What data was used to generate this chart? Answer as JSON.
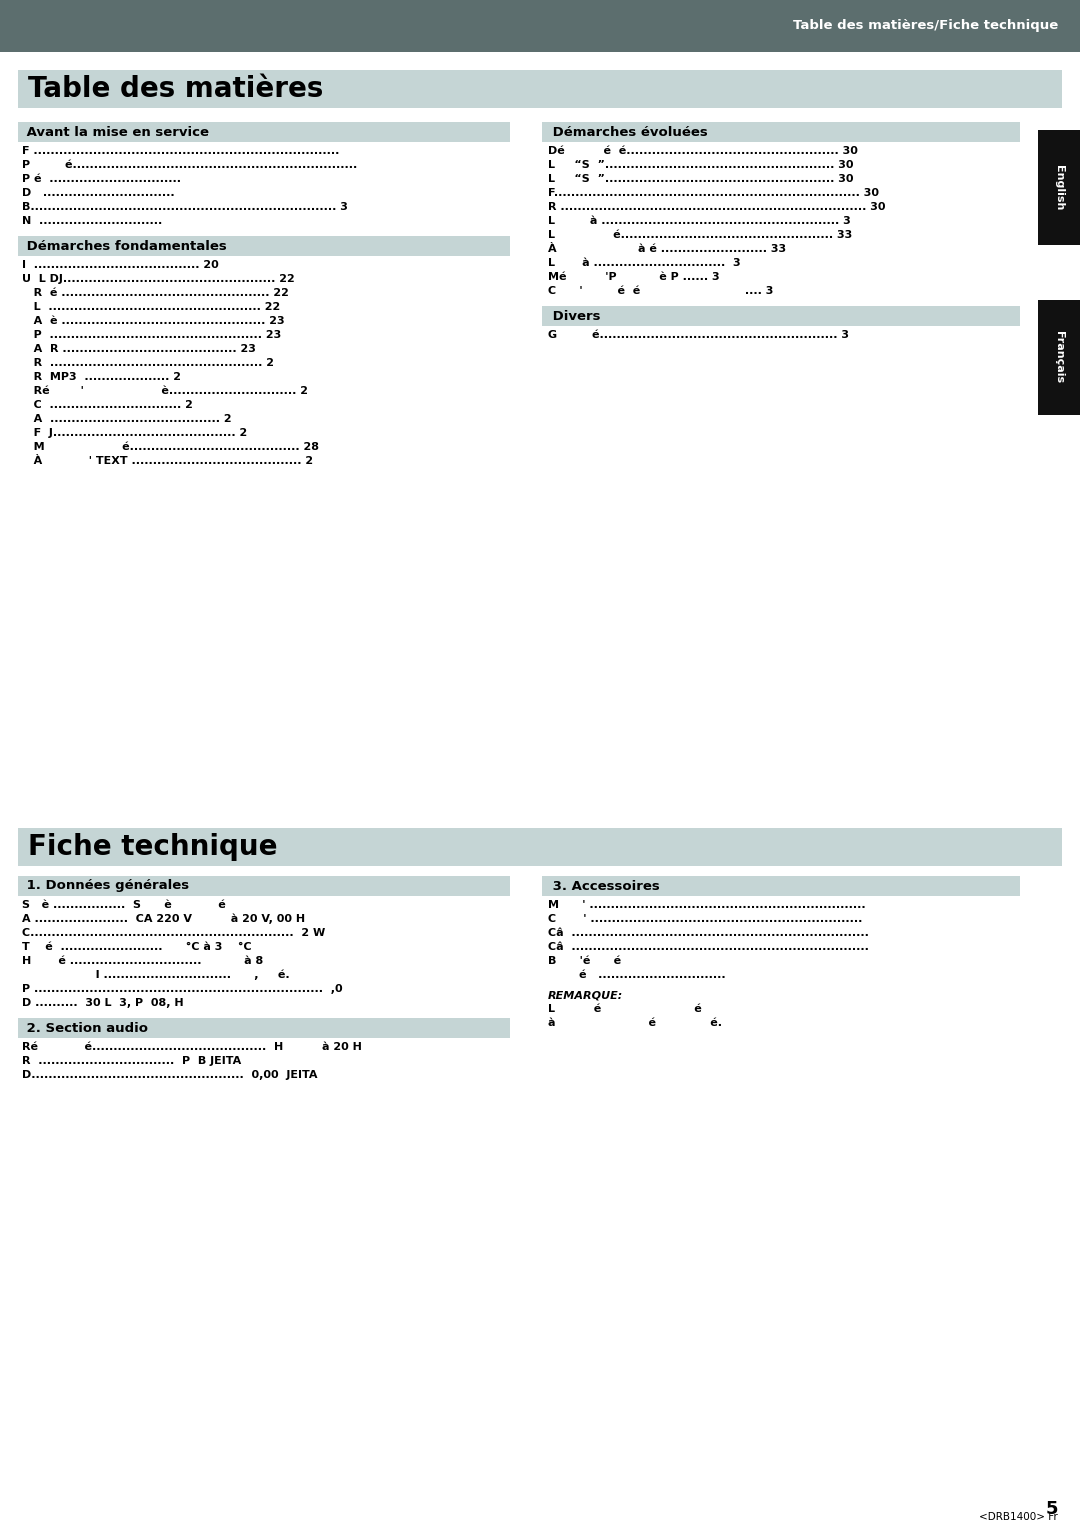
{
  "page_bg": "#ffffff",
  "header_bg": "#5c6e6e",
  "header_text": "Table des matières/Fiche technique",
  "header_text_color": "#ffffff",
  "section_bar_bg": "#c5d5d5",
  "tab_right_bg": "#111111",
  "tab_english_text": "English",
  "tab_francais_text": "Français",
  "main_title1": "Table des matières",
  "main_title2": "Fiche technique",
  "footer_text": "5",
  "footer_sub": "<DRB1400> Fr",
  "left_col1_header": " Avant la mise en service",
  "left_col1_items": [
    "F ........................................................................",
    "P         é...................................................................",
    "P é  ...............................",
    "D   ...............................",
    "B........................................................................ 3",
    "N  ............................."
  ],
  "left_col2_header": " Démarches fondamentales",
  "left_col2_items": [
    "I  ....................................... 20",
    "U  L DJ.................................................. 22",
    "   R  é ................................................. 22",
    "   L  .................................................. 22",
    "   A  è ................................................ 23",
    "   P  .................................................. 23",
    "   A  R ......................................... 23",
    "   R  .................................................. 2",
    "   R  MP3  .................... 2",
    "   Ré        '                    è.............................. 2",
    "   C  ............................... 2",
    "   A  ........................................ 2",
    "   F  J........................................... 2",
    "   M                    é........................................ 28",
    "   À            ' TEXT ........................................ 2"
  ],
  "right_col1_header": " Démarches évoluées",
  "right_col1_items": [
    "Dé          é  é.................................................. 30",
    "L     “S  ”...................................................... 30",
    "L     “S  ”...................................................... 30",
    "F........................................................................ 30",
    "R ........................................................................ 30",
    "L         à ........................................................ 3",
    "L               é.................................................. 33",
    "À                     à é ......................... 33",
    "L       à ...............................  3",
    "Mé          'P           è P ...... 3",
    "C      '         é  é                           .... 3"
  ],
  "right_col2_header": " Divers",
  "right_col2_items": [
    "G         é........................................................ 3"
  ],
  "fiche_left_col1_header": " 1. Données générales",
  "fiche_left_col1_items": [
    "S   è .................  S      è            é",
    "A ......................  CA 220 V          à 20 V, 00 H",
    "C..............................................................  2 W",
    "T    é  ........................      °C à 3    °C",
    "H       é ...............................           à 8",
    "                   I ..............................      ,     é.",
    "P ....................................................................  ,0",
    "D ..........  30 L  3, P  08, H"
  ],
  "fiche_left_col2_header": " 2. Section audio",
  "fiche_left_col2_items": [
    "Ré            é.........................................  H          à 20 H",
    "R  ................................  P  B JEITA",
    "D..................................................  0,00  JEITA"
  ],
  "fiche_right_col1_header": " 3. Accessoires",
  "fiche_right_col1_items": [
    "M      ' .................................................................",
    "C       ' ................................................................",
    "Câ  ......................................................................",
    "Câ  ......................................................................",
    "B      'é      é",
    "        é   .............................."
  ],
  "fiche_right_col2_remarque": "REMARQUE:",
  "fiche_right_col2_items": [
    "L          é                        é",
    "à                        é              é."
  ]
}
